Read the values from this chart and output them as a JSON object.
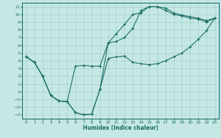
{
  "xlabel": "Humidex (Indice chaleur)",
  "xlim": [
    -0.5,
    23.5
  ],
  "ylim": [
    -3.5,
    11.5
  ],
  "xticks": [
    0,
    1,
    2,
    3,
    4,
    5,
    6,
    7,
    8,
    9,
    10,
    11,
    12,
    13,
    14,
    15,
    16,
    17,
    18,
    19,
    20,
    21,
    22,
    23
  ],
  "yticks": [
    -3,
    -2,
    -1,
    0,
    1,
    2,
    3,
    4,
    5,
    6,
    7,
    8,
    9,
    10,
    11
  ],
  "bg_color": "#c5e8e5",
  "line_color": "#1a6b64",
  "grid_color": "#a0d0cc",
  "line1_x": [
    0,
    1,
    2,
    3,
    4,
    5,
    6,
    7,
    8,
    9,
    10,
    11,
    12,
    13,
    14,
    15,
    16,
    17,
    18,
    19,
    20,
    21,
    22,
    23
  ],
  "line1_y": [
    4.5,
    3.8,
    2.0,
    -0.5,
    -1.2,
    -1.3,
    -2.7,
    -3.0,
    -2.9,
    0.3,
    6.3,
    7.5,
    8.7,
    10.0,
    10.2,
    11.0,
    11.0,
    10.5,
    10.0,
    9.8,
    9.5,
    9.4,
    9.0,
    9.5
  ],
  "line2_x": [
    0,
    1,
    2,
    3,
    4,
    5,
    6,
    7,
    8,
    9,
    10,
    11,
    12,
    13,
    14,
    15,
    16,
    17,
    18,
    19,
    20,
    21,
    22,
    23
  ],
  "line2_y": [
    4.5,
    3.8,
    2.0,
    -0.5,
    -1.2,
    -1.3,
    3.3,
    3.4,
    3.3,
    3.3,
    6.3,
    6.5,
    7.0,
    8.2,
    10.5,
    11.0,
    11.0,
    10.8,
    10.2,
    9.9,
    9.7,
    9.5,
    9.2,
    9.5
  ],
  "line3_x": [
    0,
    1,
    2,
    3,
    4,
    5,
    6,
    7,
    8,
    9,
    10,
    11,
    12,
    13,
    14,
    15,
    16,
    17,
    18,
    19,
    20,
    21,
    22,
    23
  ],
  "line3_y": [
    4.5,
    3.8,
    2.0,
    -0.5,
    -1.2,
    -1.3,
    -2.7,
    -3.0,
    -2.9,
    0.3,
    4.3,
    4.5,
    4.6,
    3.8,
    3.6,
    3.5,
    3.6,
    4.0,
    4.5,
    5.0,
    5.8,
    6.8,
    7.9,
    9.5
  ]
}
